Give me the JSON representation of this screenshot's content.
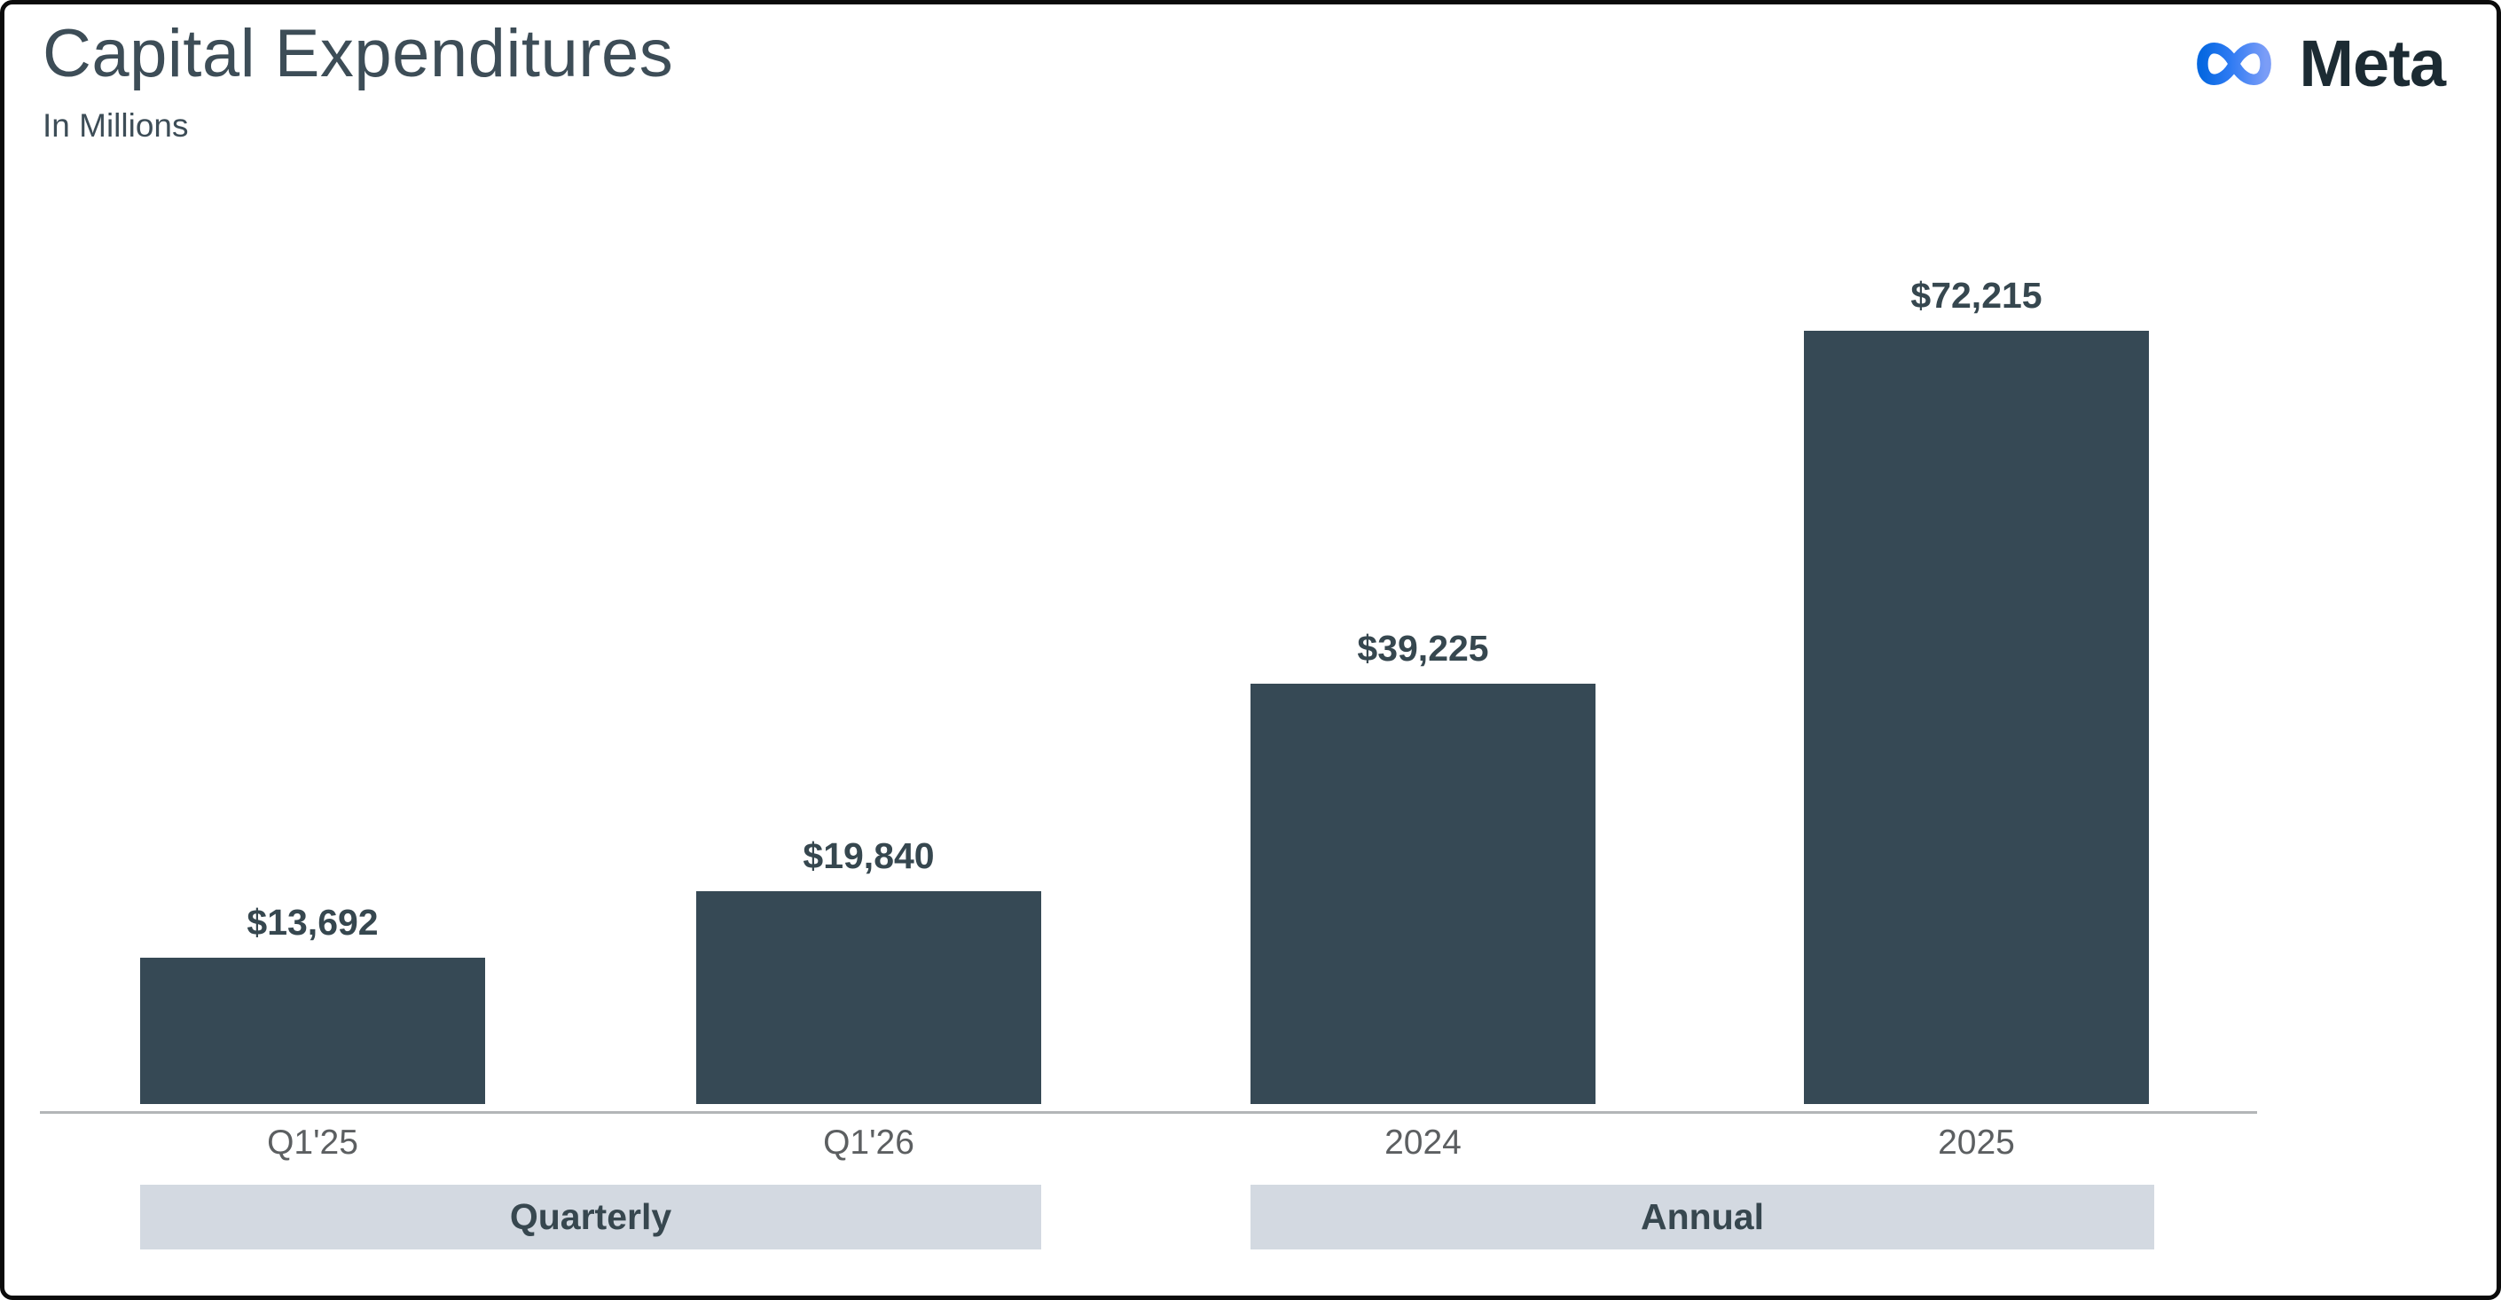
{
  "header": {
    "title": "Capital Expenditures",
    "subtitle": "In Millions",
    "brand": "Meta"
  },
  "chart_data": {
    "type": "bar",
    "title": "Capital Expenditures",
    "subtitle": "In Millions",
    "unit": "USD millions",
    "categories": [
      "Q1'25",
      "Q1'26",
      "2024",
      "2025"
    ],
    "values": [
      13692,
      19840,
      39225,
      72215
    ],
    "value_labels": [
      "$13,692",
      "$19,840",
      "$39,225",
      "$72,215"
    ],
    "groups": [
      {
        "label": "Quarterly",
        "categories": [
          "Q1'25",
          "Q1'26"
        ]
      },
      {
        "label": "Annual",
        "categories": [
          "2024",
          "2025"
        ]
      }
    ],
    "ylim": [
      0,
      72215
    ],
    "grid": false,
    "legend": "none",
    "bar_color": "#364955"
  },
  "colors": {
    "bar": "#364955",
    "title_text": "#3d4d57",
    "value_label_text": "#36474f",
    "tick_label_text": "#5c5f61",
    "group_band_bg": "#d3d9e1",
    "axis_line": "#b3b6b8",
    "brand_blue_start": "#0668e1",
    "brand_blue_mid": "#2f7bf3",
    "brand_blue_end": "#7b9df7",
    "brand_text": "#1c2b33"
  }
}
